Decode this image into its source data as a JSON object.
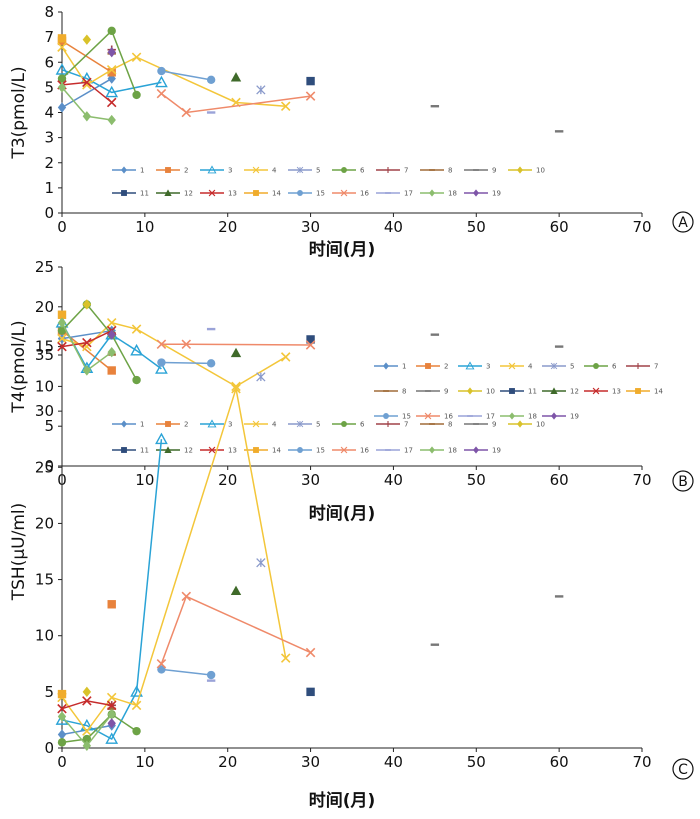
{
  "colors": {
    "1": "#5b8fc8",
    "2": "#e8823c",
    "3": "#2aa3d6",
    "4": "#f3c63a",
    "5": "#8a9acb",
    "6": "#6da346",
    "7": "#a04248",
    "8": "#a06c38",
    "9": "#777777",
    "10": "#d9c22a",
    "11": "#2f4d7c",
    "12": "#3f6a2a",
    "13": "#c62c2c",
    "14": "#f0ac2c",
    "15": "#6fa0d2",
    "16": "#ef8a6a",
    "17": "#9aa3d8",
    "18": "#8cbd6e",
    "19": "#7e55a8"
  },
  "legend_labels": [
    "1",
    "2",
    "3",
    "4",
    "5",
    "6",
    "7",
    "8",
    "9",
    "10",
    "11",
    "12",
    "13",
    "14",
    "15",
    "16",
    "17",
    "18",
    "19"
  ],
  "chart_data": [
    {
      "type": "line",
      "panel_label": "A",
      "xlabel": "时间(月)",
      "ylabel": "T3(pmol/L)",
      "xlim": [
        0,
        70
      ],
      "ylim": [
        0,
        8
      ],
      "xticks": [
        "0",
        "10",
        "20",
        "30",
        "40",
        "50",
        "60",
        "70"
      ],
      "yticks": [
        "0",
        "1",
        "2",
        "3",
        "4",
        "5",
        "6",
        "7",
        "8"
      ],
      "legend_position": "lower-center",
      "series": [
        {
          "name": "1",
          "marker": "diamond",
          "x": [
            0,
            6
          ],
          "y": [
            4.2,
            5.35
          ]
        },
        {
          "name": "2",
          "marker": "square",
          "x": [
            0,
            6
          ],
          "y": [
            6.85,
            5.6
          ]
        },
        {
          "name": "3",
          "marker": "triangle-open",
          "x": [
            0,
            3,
            6,
            12
          ],
          "y": [
            5.7,
            5.35,
            4.8,
            5.2
          ]
        },
        {
          "name": "4",
          "marker": "x",
          "x": [
            0,
            3,
            6,
            9,
            21,
            27
          ],
          "y": [
            6.6,
            5.1,
            5.7,
            6.2,
            4.4,
            4.25
          ]
        },
        {
          "name": "5",
          "marker": "star",
          "x": [
            24
          ],
          "y": [
            4.9
          ]
        },
        {
          "name": "6",
          "marker": "circle",
          "x": [
            0,
            6,
            9
          ],
          "y": [
            5.35,
            7.25,
            4.7
          ]
        },
        {
          "name": "7",
          "marker": "plus",
          "x": [
            6
          ],
          "y": [
            6.5
          ]
        },
        {
          "name": "8",
          "marker": "dash",
          "x": [
            6
          ],
          "y": [
            6.35
          ]
        },
        {
          "name": "9",
          "marker": "dash",
          "x": [
            45,
            60
          ],
          "y": [
            4.25,
            3.25
          ]
        },
        {
          "name": "10",
          "marker": "diamond",
          "x": [
            3
          ],
          "y": [
            6.9
          ]
        },
        {
          "name": "11",
          "marker": "square",
          "x": [
            30
          ],
          "y": [
            5.25
          ]
        },
        {
          "name": "12",
          "marker": "triangle",
          "x": [
            21
          ],
          "y": [
            5.4
          ]
        },
        {
          "name": "13",
          "marker": "x",
          "x": [
            0,
            3,
            6
          ],
          "y": [
            5.1,
            5.2,
            4.4
          ]
        },
        {
          "name": "14",
          "marker": "square",
          "x": [
            0
          ],
          "y": [
            6.95
          ]
        },
        {
          "name": "15",
          "marker": "circle",
          "x": [
            12,
            18
          ],
          "y": [
            5.65,
            5.3
          ]
        },
        {
          "name": "16",
          "marker": "x",
          "x": [
            12,
            15,
            30
          ],
          "y": [
            4.75,
            4.0,
            4.65
          ]
        },
        {
          "name": "17",
          "marker": "dash",
          "x": [
            18
          ],
          "y": [
            4.0
          ]
        },
        {
          "name": "18",
          "marker": "diamond",
          "x": [
            0,
            3,
            6
          ],
          "y": [
            5.0,
            3.85,
            3.7
          ]
        },
        {
          "name": "19",
          "marker": "diamond",
          "x": [
            6
          ],
          "y": [
            6.4
          ]
        }
      ]
    },
    {
      "type": "line",
      "panel_label": "B",
      "xlabel": "时间(月)",
      "ylabel": "T4(pmol/L)",
      "xlim": [
        0,
        70
      ],
      "ylim": [
        0,
        25
      ],
      "xticks": [
        "0",
        "10",
        "20",
        "30",
        "40",
        "50",
        "60",
        "70"
      ],
      "yticks": [
        "0",
        "5",
        "10",
        "15",
        "20",
        "25"
      ],
      "legend_position": "lower-center",
      "series": [
        {
          "name": "1",
          "marker": "diamond",
          "x": [
            0,
            6
          ],
          "y": [
            16.0,
            17.0
          ]
        },
        {
          "name": "2",
          "marker": "square",
          "x": [
            0,
            6
          ],
          "y": [
            17.0,
            12.0
          ]
        },
        {
          "name": "3",
          "marker": "triangle-open",
          "x": [
            0,
            3,
            6,
            9,
            12
          ],
          "y": [
            18.0,
            12.3,
            16.5,
            14.5,
            12.2
          ]
        },
        {
          "name": "4",
          "marker": "x",
          "x": [
            0,
            3,
            6,
            9,
            21,
            27
          ],
          "y": [
            16.0,
            15.0,
            18.0,
            17.2,
            10.0,
            13.7
          ]
        },
        {
          "name": "5",
          "marker": "star",
          "x": [
            24
          ],
          "y": [
            11.2
          ]
        },
        {
          "name": "6",
          "marker": "circle",
          "x": [
            0,
            3,
            6,
            9
          ],
          "y": [
            17.0,
            20.3,
            16.5,
            10.8
          ]
        },
        {
          "name": "7",
          "marker": "plus",
          "x": [
            6
          ],
          "y": [
            16.7
          ]
        },
        {
          "name": "8",
          "marker": "dash",
          "x": [
            6
          ],
          "y": [
            14.0
          ]
        },
        {
          "name": "9",
          "marker": "dash",
          "x": [
            45,
            60
          ],
          "y": [
            16.5,
            15.0
          ]
        },
        {
          "name": "10",
          "marker": "diamond",
          "x": [
            3
          ],
          "y": [
            20.3
          ]
        },
        {
          "name": "11",
          "marker": "square",
          "x": [
            30
          ],
          "y": [
            15.9
          ]
        },
        {
          "name": "12",
          "marker": "triangle",
          "x": [
            21
          ],
          "y": [
            14.2
          ]
        },
        {
          "name": "13",
          "marker": "x",
          "x": [
            0,
            3,
            6
          ],
          "y": [
            15.0,
            15.5,
            17.0
          ]
        },
        {
          "name": "14",
          "marker": "square",
          "x": [
            0
          ],
          "y": [
            19.0
          ]
        },
        {
          "name": "15",
          "marker": "circle",
          "x": [
            12,
            18
          ],
          "y": [
            13.0,
            12.9
          ]
        },
        {
          "name": "16",
          "marker": "x",
          "x": [
            12,
            15,
            30
          ],
          "y": [
            15.3,
            15.3,
            15.2
          ]
        },
        {
          "name": "17",
          "marker": "dash",
          "x": [
            18
          ],
          "y": [
            17.2
          ]
        },
        {
          "name": "18",
          "marker": "diamond",
          "x": [
            0,
            3,
            6
          ],
          "y": [
            18.0,
            12.0,
            14.3
          ]
        },
        {
          "name": "19",
          "marker": "diamond",
          "x": [
            6
          ],
          "y": [
            16.5
          ]
        }
      ]
    },
    {
      "type": "line",
      "panel_label": "C",
      "xlabel": "时间(月)",
      "ylabel": "TSH(μU/ml)",
      "xlim": [
        0,
        70
      ],
      "ylim": [
        0,
        35
      ],
      "xticks": [
        "0",
        "10",
        "20",
        "30",
        "40",
        "50",
        "60",
        "70"
      ],
      "yticks": [
        "0",
        "5",
        "10",
        "15",
        "20",
        "25",
        "30",
        "35"
      ],
      "legend_position": "upper-right",
      "series": [
        {
          "name": "1",
          "marker": "diamond",
          "x": [
            0,
            6
          ],
          "y": [
            1.2,
            2.0
          ]
        },
        {
          "name": "2",
          "marker": "square",
          "x": [
            6
          ],
          "y": [
            12.8
          ]
        },
        {
          "name": "3",
          "marker": "triangle-open",
          "x": [
            0,
            3,
            6,
            9,
            12
          ],
          "y": [
            2.5,
            2.0,
            0.8,
            5.0,
            27.5
          ]
        },
        {
          "name": "4",
          "marker": "x",
          "x": [
            0,
            3,
            6,
            9,
            21,
            27
          ],
          "y": [
            4.5,
            1.5,
            4.5,
            3.8,
            32.0,
            8.0
          ]
        },
        {
          "name": "5",
          "marker": "star",
          "x": [
            24
          ],
          "y": [
            16.5
          ]
        },
        {
          "name": "6",
          "marker": "circle",
          "x": [
            0,
            3,
            6,
            9
          ],
          "y": [
            0.5,
            0.8,
            3.0,
            1.5
          ]
        },
        {
          "name": "7",
          "marker": "plus",
          "x": [
            6
          ],
          "y": [
            3.8
          ]
        },
        {
          "name": "8",
          "marker": "dash",
          "x": [
            6
          ],
          "y": [
            3.5
          ]
        },
        {
          "name": "9",
          "marker": "dash",
          "x": [
            45,
            60
          ],
          "y": [
            9.2,
            13.5
          ]
        },
        {
          "name": "10",
          "marker": "diamond",
          "x": [
            3
          ],
          "y": [
            5.0
          ]
        },
        {
          "name": "11",
          "marker": "square",
          "x": [
            30
          ],
          "y": [
            5.0
          ]
        },
        {
          "name": "12",
          "marker": "triangle",
          "x": [
            21
          ],
          "y": [
            14.0
          ]
        },
        {
          "name": "13",
          "marker": "x",
          "x": [
            0,
            3,
            6
          ],
          "y": [
            3.5,
            4.2,
            3.8
          ]
        },
        {
          "name": "14",
          "marker": "square",
          "x": [
            0
          ],
          "y": [
            4.8
          ]
        },
        {
          "name": "15",
          "marker": "circle",
          "x": [
            12,
            18
          ],
          "y": [
            7.0,
            6.5
          ]
        },
        {
          "name": "16",
          "marker": "x",
          "x": [
            12,
            15,
            30
          ],
          "y": [
            7.5,
            13.5,
            8.5
          ]
        },
        {
          "name": "17",
          "marker": "dash",
          "x": [
            18
          ],
          "y": [
            6.0
          ]
        },
        {
          "name": "18",
          "marker": "diamond",
          "x": [
            0,
            3,
            6
          ],
          "y": [
            2.8,
            0.2,
            3.0
          ]
        },
        {
          "name": "19",
          "marker": "diamond",
          "x": [
            6
          ],
          "y": [
            2.2
          ]
        }
      ]
    }
  ]
}
